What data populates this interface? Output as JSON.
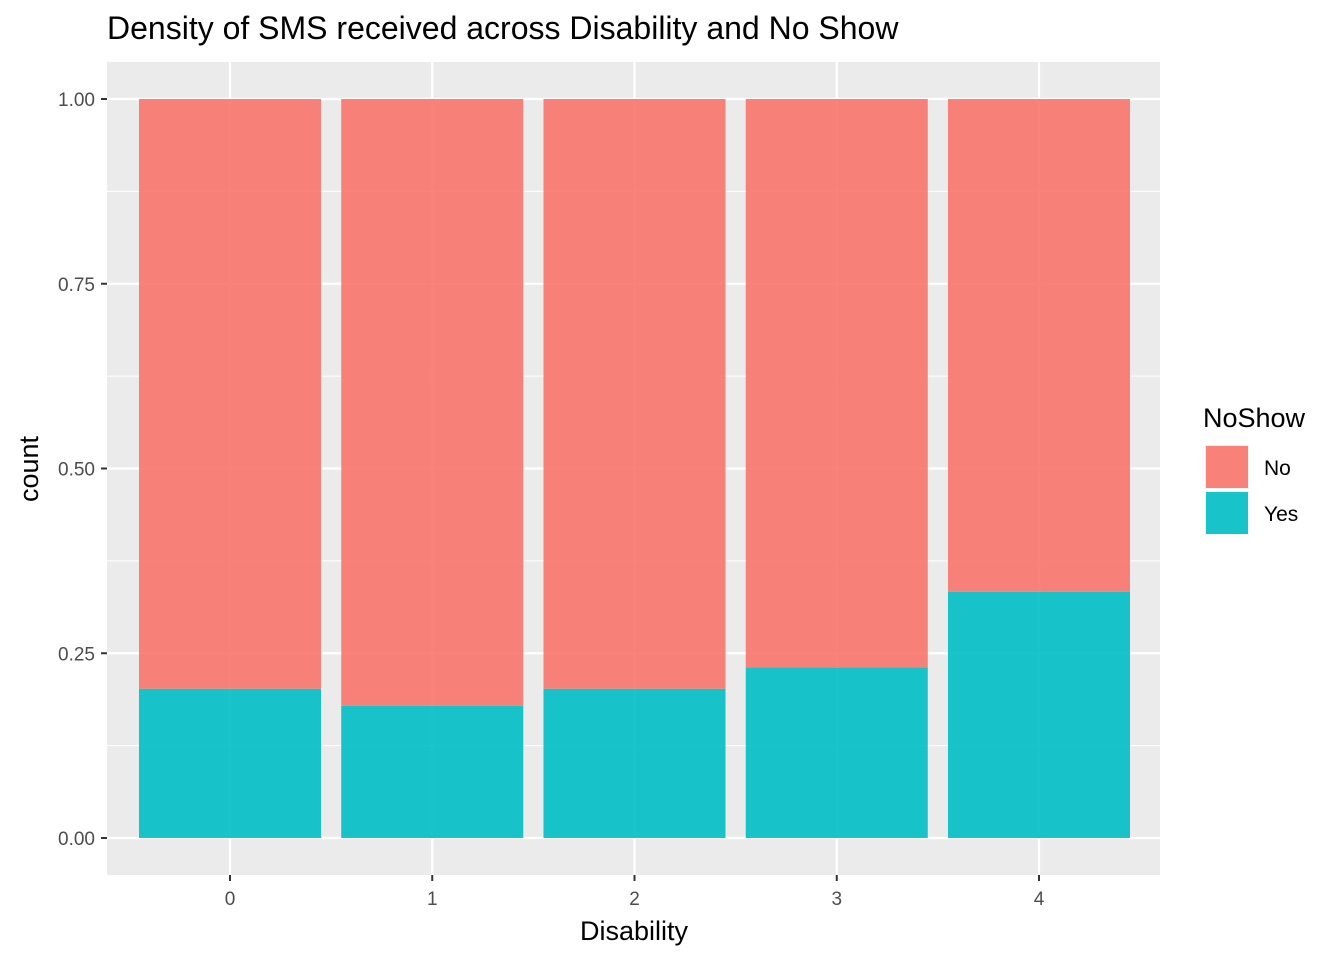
{
  "chart_data": {
    "type": "bar",
    "stacked": true,
    "title": "Density of SMS received across Disability and No Show",
    "xlabel": "Disability",
    "ylabel": "count",
    "categories": [
      "0",
      "1",
      "2",
      "3",
      "4"
    ],
    "series": [
      {
        "name": "No",
        "values": [
          0.798,
          0.821,
          0.798,
          0.769,
          0.667
        ],
        "color": "#F8766D"
      },
      {
        "name": "Yes",
        "values": [
          0.202,
          0.179,
          0.202,
          0.231,
          0.333
        ],
        "color": "#00BFC4"
      }
    ],
    "ylim": [
      0,
      1
    ],
    "yticks": [
      "0.00",
      "0.25",
      "0.50",
      "0.75",
      "1.00"
    ],
    "ytick_values": [
      0,
      0.25,
      0.5,
      0.75,
      1.0
    ],
    "grid": true,
    "panel_background": "#EBEBEB",
    "legend": {
      "title": "NoShow",
      "position": "right"
    }
  }
}
